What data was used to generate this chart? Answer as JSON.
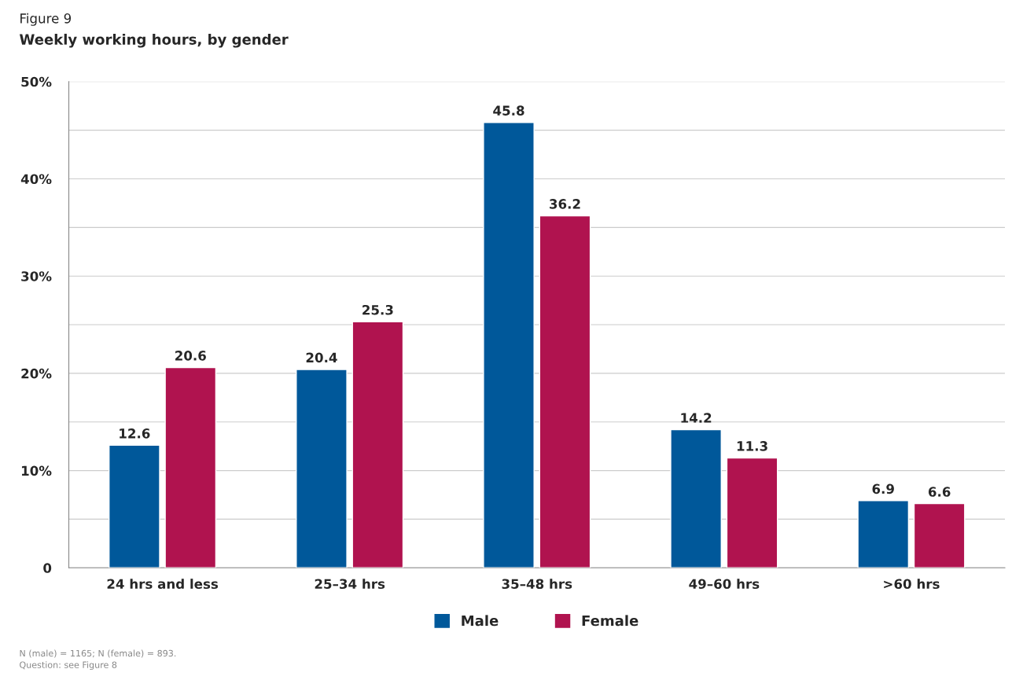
{
  "chart_data": {
    "type": "bar",
    "title": "Figure 9",
    "subtitle": "Weekly working hours, by gender",
    "categories": [
      "24 hrs and less",
      "25–34 hrs",
      "35–48 hrs",
      "49–60 hrs",
      ">60 hrs"
    ],
    "series": [
      {
        "name": "Male",
        "color": "#00589a",
        "values": [
          12.6,
          20.4,
          45.8,
          14.2,
          6.9
        ]
      },
      {
        "name": "Female",
        "color": "#b0134f",
        "values": [
          20.6,
          25.3,
          36.2,
          11.3,
          6.6
        ]
      }
    ],
    "ylim": [
      0,
      50
    ],
    "yticks": [
      {
        "value": 0,
        "label": "0"
      },
      {
        "value": 5,
        "label": null
      },
      {
        "value": 10,
        "label": "10%"
      },
      {
        "value": 15,
        "label": null
      },
      {
        "value": 20,
        "label": "20%"
      },
      {
        "value": 25,
        "label": null
      },
      {
        "value": 30,
        "label": "30%"
      },
      {
        "value": 35,
        "label": null
      },
      {
        "value": 40,
        "label": "40%"
      },
      {
        "value": 45,
        "label": null
      },
      {
        "value": 50,
        "label": "50%"
      }
    ],
    "grid": "y",
    "legend": "bottom",
    "data_labels": true,
    "annotations": [
      "N (male) = 1165; N (female) = 893.",
      "Question: see Figure 8"
    ]
  }
}
